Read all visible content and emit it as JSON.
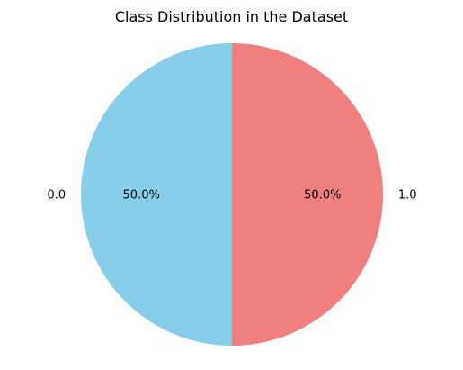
{
  "chart_data": {
    "type": "pie",
    "title": "Class Distribution in the Dataset",
    "start_angle_deg": 90,
    "direction": "counterclockwise",
    "slices": [
      {
        "label": "0.0",
        "value": 50.0,
        "pct_label": "50.0%",
        "color": "#87CEEB"
      },
      {
        "label": "1.0",
        "value": 50.0,
        "pct_label": "50.0%",
        "color": "#F08080"
      }
    ]
  }
}
